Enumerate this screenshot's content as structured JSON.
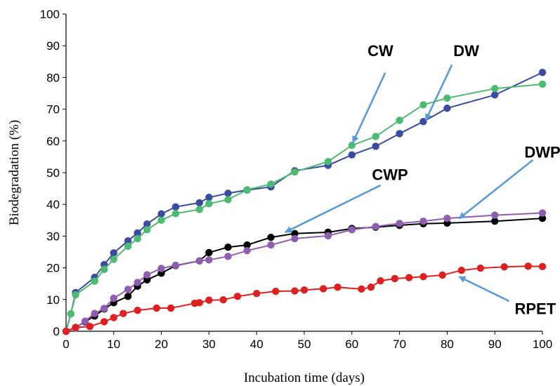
{
  "chart_data": {
    "type": "line",
    "xlabel": "Incubation time (days)",
    "ylabel": "Biodegradation (%)",
    "xlim": [
      0,
      100
    ],
    "ylim": [
      0,
      100
    ],
    "xticks": [
      0,
      10,
      20,
      30,
      40,
      50,
      60,
      70,
      80,
      90,
      100
    ],
    "yticks": [
      0,
      10,
      20,
      30,
      40,
      50,
      60,
      70,
      80,
      90,
      100
    ],
    "grid": false,
    "legend": "none",
    "series": [
      {
        "name": "DW",
        "color": "#3a4ba0",
        "x": [
          0,
          1,
          2,
          6,
          8,
          10,
          13,
          15,
          17,
          20,
          23,
          28,
          30,
          34,
          38,
          43,
          48,
          55,
          60,
          65,
          70,
          75,
          80,
          90,
          100
        ],
        "y": [
          0,
          5.5,
          12.2,
          17,
          21,
          24.7,
          28.5,
          31,
          33.8,
          37,
          39.2,
          40.5,
          42.2,
          43.5,
          44.5,
          45.5,
          50.6,
          52.3,
          55.6,
          58.3,
          62.3,
          66.1,
          70.3,
          74.5,
          81.6
        ]
      },
      {
        "name": "CW",
        "color": "#4cba70",
        "x": [
          0,
          1,
          2,
          6,
          8,
          10,
          13,
          15,
          17,
          20,
          23,
          28,
          30,
          34,
          38,
          43,
          48,
          55,
          60,
          65,
          70,
          75,
          80,
          90,
          100
        ],
        "y": [
          0,
          5.5,
          11.5,
          15.8,
          19.5,
          22.7,
          26.8,
          29.2,
          32,
          35,
          37.1,
          38.4,
          40.2,
          41.5,
          44.6,
          46.4,
          50.2,
          53.5,
          58.6,
          61.4,
          66.5,
          71.4,
          73.5,
          76.5,
          77.9
        ]
      },
      {
        "name": "CWP",
        "color": "#000000",
        "x": [
          0,
          2,
          4,
          6,
          8,
          10,
          13,
          15,
          17,
          20,
          23,
          28,
          30,
          34,
          38,
          43,
          48,
          55,
          60,
          65,
          70,
          75,
          80,
          90,
          100
        ],
        "y": [
          0,
          1.2,
          3,
          4.8,
          7,
          9,
          11,
          14.2,
          16.2,
          18.3,
          20.7,
          22.2,
          24.8,
          26.5,
          27.2,
          29.6,
          30.8,
          31.2,
          32.4,
          32.8,
          33.4,
          33.9,
          34.1,
          34.7,
          35.6
        ]
      },
      {
        "name": "DWP",
        "color": "#8e5fb0",
        "x": [
          0,
          2,
          4,
          6,
          8,
          10,
          13,
          15,
          17,
          20,
          23,
          28,
          30,
          34,
          38,
          43,
          48,
          55,
          60,
          65,
          70,
          75,
          80,
          90,
          100
        ],
        "y": [
          0,
          1,
          3.2,
          5.6,
          7.2,
          10.4,
          13.2,
          15.4,
          17.8,
          19.8,
          20.8,
          22.2,
          22.5,
          23.6,
          25.4,
          27.2,
          29.2,
          30.1,
          32,
          33,
          34,
          34.7,
          35.6,
          36.6,
          37.3
        ]
      },
      {
        "name": "RPET",
        "color": "#e02020",
        "x": [
          0,
          2,
          5,
          8,
          10,
          12,
          15,
          19,
          22,
          27,
          28,
          30,
          33,
          36,
          40,
          44,
          48,
          50,
          54,
          57,
          62,
          64,
          66,
          69,
          72,
          75,
          79,
          83,
          87,
          92,
          97,
          100
        ],
        "y": [
          0,
          1.2,
          1.5,
          3,
          4.3,
          5.6,
          6.6,
          7.3,
          7.3,
          8.8,
          9,
          9.8,
          9.9,
          11,
          11.9,
          12.6,
          12.7,
          13,
          13.4,
          13.9,
          13.3,
          13.9,
          15.9,
          16.6,
          16.9,
          17.2,
          17.7,
          19.2,
          19.9,
          20.3,
          20.5,
          20.4
        ]
      }
    ],
    "annotations": [
      {
        "text": "CW",
        "series": "CW",
        "label_at": [
          66,
          88.5
        ],
        "arrow_from": [
          67,
          81.5
        ],
        "arrow_to": [
          60.2,
          59.5
        ]
      },
      {
        "text": "DW",
        "series": "DW",
        "label_at": [
          84,
          88.5
        ],
        "arrow_from": [
          81,
          84
        ],
        "arrow_to": [
          75.5,
          66.5
        ]
      },
      {
        "text": "CWP",
        "series": "CWP",
        "label_at": [
          68,
          49.5
        ],
        "arrow_from": [
          66,
          46
        ],
        "arrow_to": [
          46,
          31.2
        ]
      },
      {
        "text": "DWP",
        "series": "DWP",
        "label_at": [
          100,
          56.5
        ],
        "arrow_from": [
          98,
          54
        ],
        "arrow_to": [
          82.5,
          35.5
        ]
      },
      {
        "text": "RPET",
        "series": "RPET",
        "label_at": [
          98.5,
          7.2
        ],
        "arrow_from": [
          93,
          9.5
        ],
        "arrow_to": [
          82.5,
          17.2
        ]
      }
    ]
  }
}
